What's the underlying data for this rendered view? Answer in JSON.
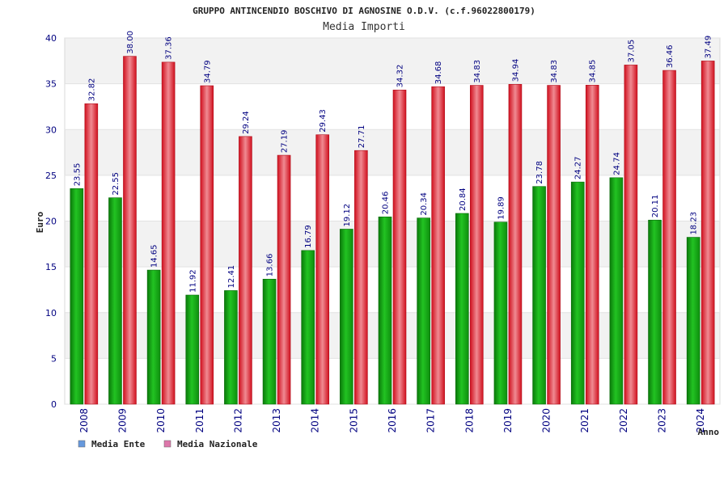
{
  "chart_data": {
    "type": "bar",
    "title": "GRUPPO ANTINCENDIO BOSCHIVO DI AGNOSINE O.D.V. (c.f.96022800179)",
    "subtitle": "Media Importi",
    "xlabel": "Anno",
    "ylabel": "Euro",
    "ylim": [
      0,
      40
    ],
    "yticks": [
      0,
      5,
      10,
      15,
      20,
      25,
      30,
      35,
      40
    ],
    "grid": true,
    "legend_position": "bottom-left",
    "categories": [
      "2008",
      "2009",
      "2010",
      "2011",
      "2012",
      "2013",
      "2014",
      "2015",
      "2016",
      "2017",
      "2018",
      "2019",
      "2020",
      "2021",
      "2022",
      "2023",
      "2024"
    ],
    "series": [
      {
        "name": "Media Ente",
        "color": "#16a016",
        "legend_color": "#6699dd",
        "values": [
          23.55,
          22.55,
          14.65,
          11.92,
          12.41,
          13.66,
          16.79,
          19.12,
          20.46,
          20.34,
          20.84,
          19.89,
          23.78,
          24.27,
          24.74,
          20.11,
          18.23
        ]
      },
      {
        "name": "Media Nazionale",
        "color": "#e01b2b",
        "legend_color": "#dd77aa",
        "values": [
          32.82,
          38.0,
          37.36,
          34.79,
          29.24,
          27.19,
          29.43,
          27.71,
          34.32,
          34.68,
          34.83,
          34.94,
          34.83,
          34.85,
          37.05,
          36.46,
          37.49
        ]
      }
    ]
  }
}
